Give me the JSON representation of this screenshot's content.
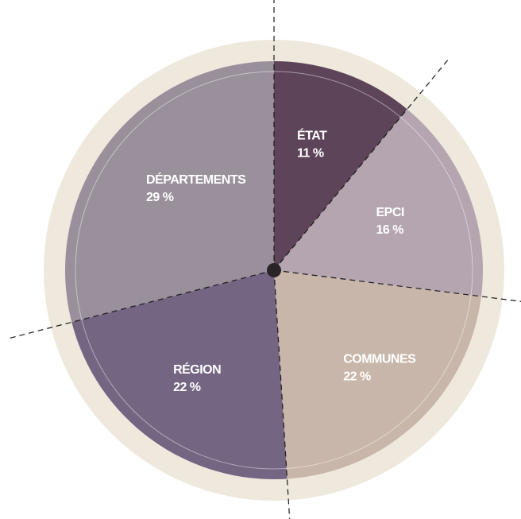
{
  "chart_data": {
    "type": "pie",
    "categories": [
      "ÉTAT",
      "EPCI",
      "COMMUNES",
      "RÉGION",
      "DÉPARTEMENTS"
    ],
    "values": [
      11,
      16,
      22,
      22,
      29
    ],
    "value_labels": [
      "11 %",
      "16 %",
      "22 %",
      "22 %",
      "29 %"
    ],
    "colors": [
      "#5e4459",
      "#b4a5b0",
      "#c8b6aa",
      "#746583",
      "#9a909c"
    ]
  }
}
